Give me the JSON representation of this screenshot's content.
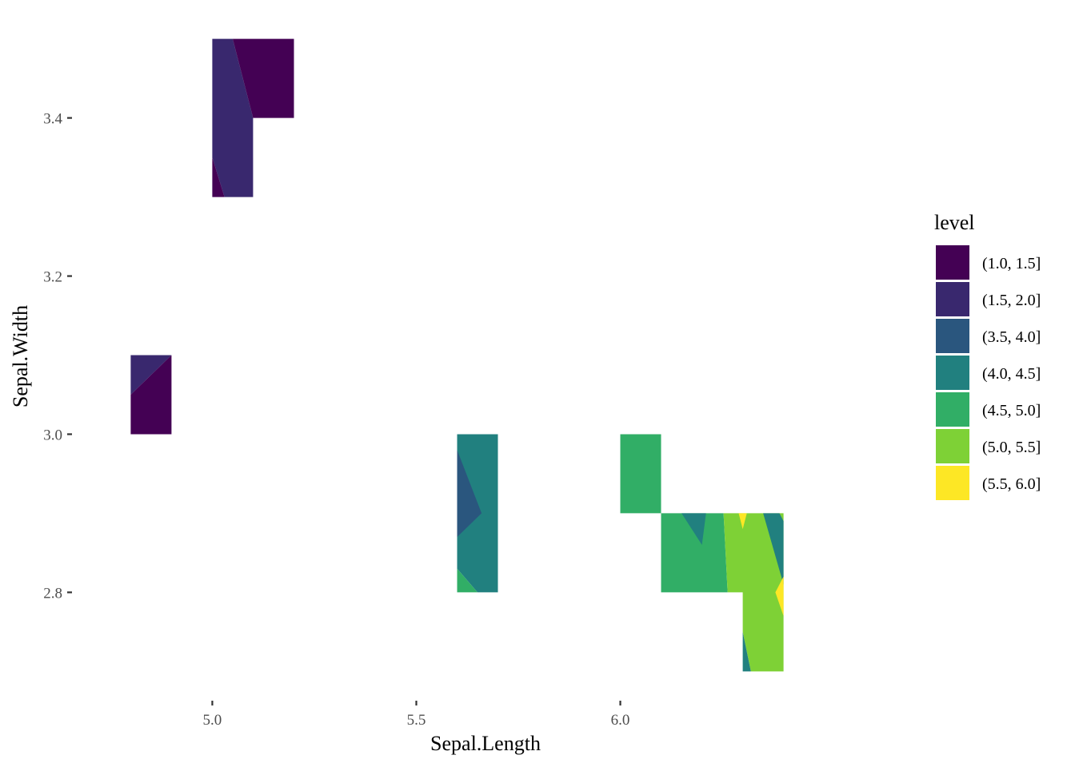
{
  "chart_data": {
    "type": "heatmap",
    "subtype": "filled-contour",
    "xlabel": "Sepal.Length",
    "ylabel": "Sepal.Width",
    "xlim": [
      4.66,
      6.64
    ],
    "ylim": [
      2.665,
      3.535
    ],
    "x_ticks": [
      5.0,
      5.5,
      6.0
    ],
    "x_tick_labels": [
      "5.0",
      "5.5",
      "6.0"
    ],
    "y_ticks": [
      2.8,
      3.0,
      3.2,
      3.4
    ],
    "y_tick_labels": [
      "2.8",
      "3.0",
      "3.2",
      "3.4"
    ],
    "grid": false,
    "legend": {
      "title": "level",
      "position": "right",
      "entries": [
        {
          "label": "(1.0, 1.5]",
          "color": "#440154"
        },
        {
          "label": "(1.5, 2.0]",
          "color": "#39286E"
        },
        {
          "label": "(3.5, 4.0]",
          "color": "#2A567E"
        },
        {
          "label": "(4.0, 4.5]",
          "color": "#21807F"
        },
        {
          "label": "(4.5, 5.0]",
          "color": "#31AE66"
        },
        {
          "label": "(5.0, 5.5]",
          "color": "#7ED136"
        },
        {
          "label": "(5.5, 6.0]",
          "color": "#FDE725"
        }
      ]
    },
    "regions": [
      {
        "level": "(1.5, 2.0]",
        "points": [
          [
            5.0,
            3.5
          ],
          [
            5.05,
            3.5
          ],
          [
            5.1,
            3.4
          ],
          [
            5.1,
            3.3
          ],
          [
            5.03,
            3.3
          ],
          [
            5.0,
            3.35
          ]
        ]
      },
      {
        "level": "(1.0, 1.5]",
        "points": [
          [
            5.05,
            3.5
          ],
          [
            5.2,
            3.5
          ],
          [
            5.2,
            3.4
          ],
          [
            5.1,
            3.4
          ]
        ]
      },
      {
        "level": "(1.0, 1.5]",
        "points": [
          [
            5.0,
            3.35
          ],
          [
            5.03,
            3.3
          ],
          [
            5.0,
            3.3
          ]
        ]
      },
      {
        "level": "(1.5, 2.0]",
        "points": [
          [
            4.8,
            3.1
          ],
          [
            4.9,
            3.1
          ],
          [
            4.8,
            3.05
          ]
        ]
      },
      {
        "level": "(1.0, 1.5]",
        "points": [
          [
            4.9,
            3.1
          ],
          [
            4.9,
            3.0
          ],
          [
            4.8,
            3.0
          ],
          [
            4.8,
            3.05
          ]
        ]
      },
      {
        "level": "(4.0, 4.5]",
        "points": [
          [
            5.6,
            3.0
          ],
          [
            5.7,
            3.0
          ],
          [
            5.7,
            2.8
          ],
          [
            5.65,
            2.8
          ],
          [
            5.6,
            2.83
          ]
        ]
      },
      {
        "level": "(3.5, 4.0]",
        "points": [
          [
            5.6,
            2.98
          ],
          [
            5.66,
            2.9
          ],
          [
            5.6,
            2.87
          ]
        ]
      },
      {
        "level": "(4.5, 5.0]",
        "points": [
          [
            5.6,
            2.83
          ],
          [
            5.65,
            2.8
          ],
          [
            5.6,
            2.8
          ]
        ]
      },
      {
        "level": "(4.5, 5.0]",
        "points": [
          [
            6.0,
            3.0
          ],
          [
            6.1,
            3.0
          ],
          [
            6.1,
            2.9
          ],
          [
            6.0,
            2.9
          ]
        ]
      },
      {
        "level": "(4.5, 5.0]",
        "points": [
          [
            6.1,
            2.9
          ],
          [
            6.253,
            2.9
          ],
          [
            6.263,
            2.8
          ],
          [
            6.1,
            2.8
          ]
        ]
      },
      {
        "level": "(4.0, 4.5]",
        "points": [
          [
            6.15,
            2.9
          ],
          [
            6.21,
            2.9
          ],
          [
            6.2,
            2.86
          ]
        ]
      },
      {
        "level": "(5.0, 5.5]",
        "points": [
          [
            6.253,
            2.9
          ],
          [
            6.4,
            2.9
          ],
          [
            6.4,
            2.7
          ],
          [
            6.32,
            2.7
          ],
          [
            6.3,
            2.75
          ],
          [
            6.3,
            2.8
          ],
          [
            6.263,
            2.8
          ]
        ]
      },
      {
        "level": "(5.5, 6.0]",
        "points": [
          [
            6.29,
            2.9
          ],
          [
            6.31,
            2.9
          ],
          [
            6.3,
            2.88
          ]
        ]
      },
      {
        "level": "(4.0, 4.5]",
        "points": [
          [
            6.35,
            2.9
          ],
          [
            6.39,
            2.9
          ],
          [
            6.4,
            2.89
          ],
          [
            6.4,
            2.81
          ]
        ]
      },
      {
        "level": "(5.5, 6.0]",
        "points": [
          [
            6.4,
            2.82
          ],
          [
            6.38,
            2.8
          ],
          [
            6.4,
            2.77
          ]
        ]
      },
      {
        "level": "(4.0, 4.5]",
        "points": [
          [
            6.3,
            2.75
          ],
          [
            6.32,
            2.7
          ],
          [
            6.3,
            2.7
          ]
        ]
      }
    ]
  }
}
